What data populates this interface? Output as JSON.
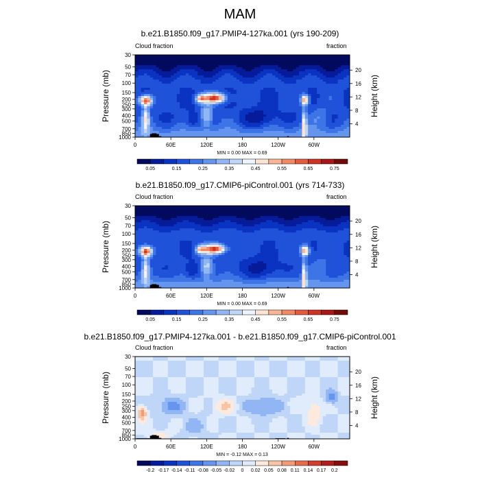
{
  "figure": {
    "title": "MAM"
  },
  "panels": [
    {
      "title": "b.e21.B1850.f09_g17.PMIP4-127ka.001 (yrs 190-209)",
      "left_label": "Cloud fraction",
      "right_label": "fraction",
      "stats": "MIN =   0.00  MAX =   0.69"
    },
    {
      "title": "b.e21.B1850.f09_g17.CMIP6-piControl.001 (yrs 714-733)",
      "left_label": "Cloud fraction",
      "right_label": "fraction",
      "stats": "MIN =   0.00  MAX =   0.69"
    },
    {
      "title": "b.e21.B1850.f09_g17.PMIP4-127ka.001 - b.e21.B1850.f09_g17.CMIP6-piControl.001",
      "left_label": "Cloud fraction",
      "right_label": "fraction",
      "stats": "MIN =  -0.12  MAX =   0.13"
    }
  ],
  "colors": {
    "abs_scale": [
      "#020a5e",
      "#061b9a",
      "#0a33c2",
      "#1f52d8",
      "#3d74e6",
      "#6595ee",
      "#91b6f3",
      "#bfd6f8",
      "#eef4fd",
      "#fde3d4",
      "#f8b595",
      "#f08a66",
      "#e45c3f",
      "#cd3425",
      "#a81716",
      "#720a0a"
    ],
    "diff_scale": [
      "#020a5e",
      "#061b9a",
      "#0a33c2",
      "#1f52d8",
      "#3d74e6",
      "#6595ee",
      "#91b6f3",
      "#bfd6f8",
      "#e0ecfb",
      "#fde9dd",
      "#f8c4a6",
      "#f29b78",
      "#e66d4c",
      "#d13f2d",
      "#b01f1b",
      "#850d0d",
      "#5c0505"
    ],
    "terrain": "#000000"
  },
  "chart_data": [
    {
      "type": "heatmap",
      "title": "b.e21.B1850.f09_g17.PMIP4-127ka.001 (yrs 190-209)",
      "xlabel": "",
      "ylabel": "Pressure (mb)",
      "y2label": "Height (km)",
      "x_ticks": [
        "0",
        "60E",
        "120E",
        "180",
        "120W",
        "60W"
      ],
      "x_range_deg": [
        0,
        360
      ],
      "y_ticks": [
        "30",
        "50",
        "70",
        "100",
        "150",
        "200",
        "250",
        "300",
        "400",
        "500",
        "700",
        "850",
        "1000"
      ],
      "y_range_mb": [
        1000,
        30
      ],
      "y_log": true,
      "y2_ticks": [
        "20",
        "16",
        "12",
        "8",
        "4"
      ],
      "min": 0.0,
      "max": 0.69,
      "colorbar_labels": [
        "0.05",
        "0.15",
        "0.25",
        "0.35",
        "0.45",
        "0.55",
        "0.65",
        "0.75"
      ],
      "levels": [
        0.05,
        0.1,
        0.15,
        0.2,
        0.25,
        0.3,
        0.35,
        0.4,
        0.45,
        0.5,
        0.55,
        0.6,
        0.65,
        0.7,
        0.75
      ]
    },
    {
      "type": "heatmap",
      "title": "b.e21.B1850.f09_g17.CMIP6-piControl.001 (yrs 714-733)",
      "xlabel": "",
      "ylabel": "Pressure (mb)",
      "y2label": "Height (km)",
      "x_ticks": [
        "0",
        "60E",
        "120E",
        "180",
        "120W",
        "60W"
      ],
      "x_range_deg": [
        0,
        360
      ],
      "y_ticks": [
        "30",
        "50",
        "70",
        "100",
        "150",
        "200",
        "250",
        "300",
        "400",
        "500",
        "700",
        "850",
        "1000"
      ],
      "y_range_mb": [
        1000,
        30
      ],
      "y_log": true,
      "y2_ticks": [
        "20",
        "16",
        "12",
        "8",
        "4"
      ],
      "min": 0.0,
      "max": 0.69,
      "colorbar_labels": [
        "0.05",
        "0.15",
        "0.25",
        "0.35",
        "0.45",
        "0.55",
        "0.65",
        "0.75"
      ],
      "levels": [
        0.05,
        0.1,
        0.15,
        0.2,
        0.25,
        0.3,
        0.35,
        0.4,
        0.45,
        0.5,
        0.55,
        0.6,
        0.65,
        0.7,
        0.75
      ]
    },
    {
      "type": "heatmap",
      "title": "b.e21.B1850.f09_g17.PMIP4-127ka.001 - b.e21.B1850.f09_g17.CMIP6-piControl.001",
      "xlabel": "",
      "ylabel": "Pressure (mb)",
      "y2label": "Height (km)",
      "x_ticks": [
        "0",
        "60E",
        "120E",
        "180",
        "120W",
        "60W"
      ],
      "x_range_deg": [
        0,
        360
      ],
      "y_ticks": [
        "30",
        "50",
        "70",
        "100",
        "150",
        "200",
        "250",
        "300",
        "400",
        "500",
        "700",
        "850",
        "1000"
      ],
      "y_range_mb": [
        1000,
        30
      ],
      "y_log": true,
      "y2_ticks": [
        "20",
        "16",
        "12",
        "8",
        "4"
      ],
      "min": -0.12,
      "max": 0.13,
      "colorbar_labels": [
        "-0.2",
        "-0.17",
        "-0.14",
        "-0.11",
        "-0.08",
        "-0.05",
        "-0.02",
        "0",
        "0.02",
        "0.05",
        "0.08",
        "0.11",
        "0.14",
        "0.17",
        "0.2"
      ],
      "levels": [
        -0.2,
        -0.17,
        -0.14,
        -0.11,
        -0.08,
        -0.05,
        -0.02,
        0,
        0.02,
        0.05,
        0.08,
        0.11,
        0.14,
        0.17,
        0.2
      ]
    }
  ]
}
